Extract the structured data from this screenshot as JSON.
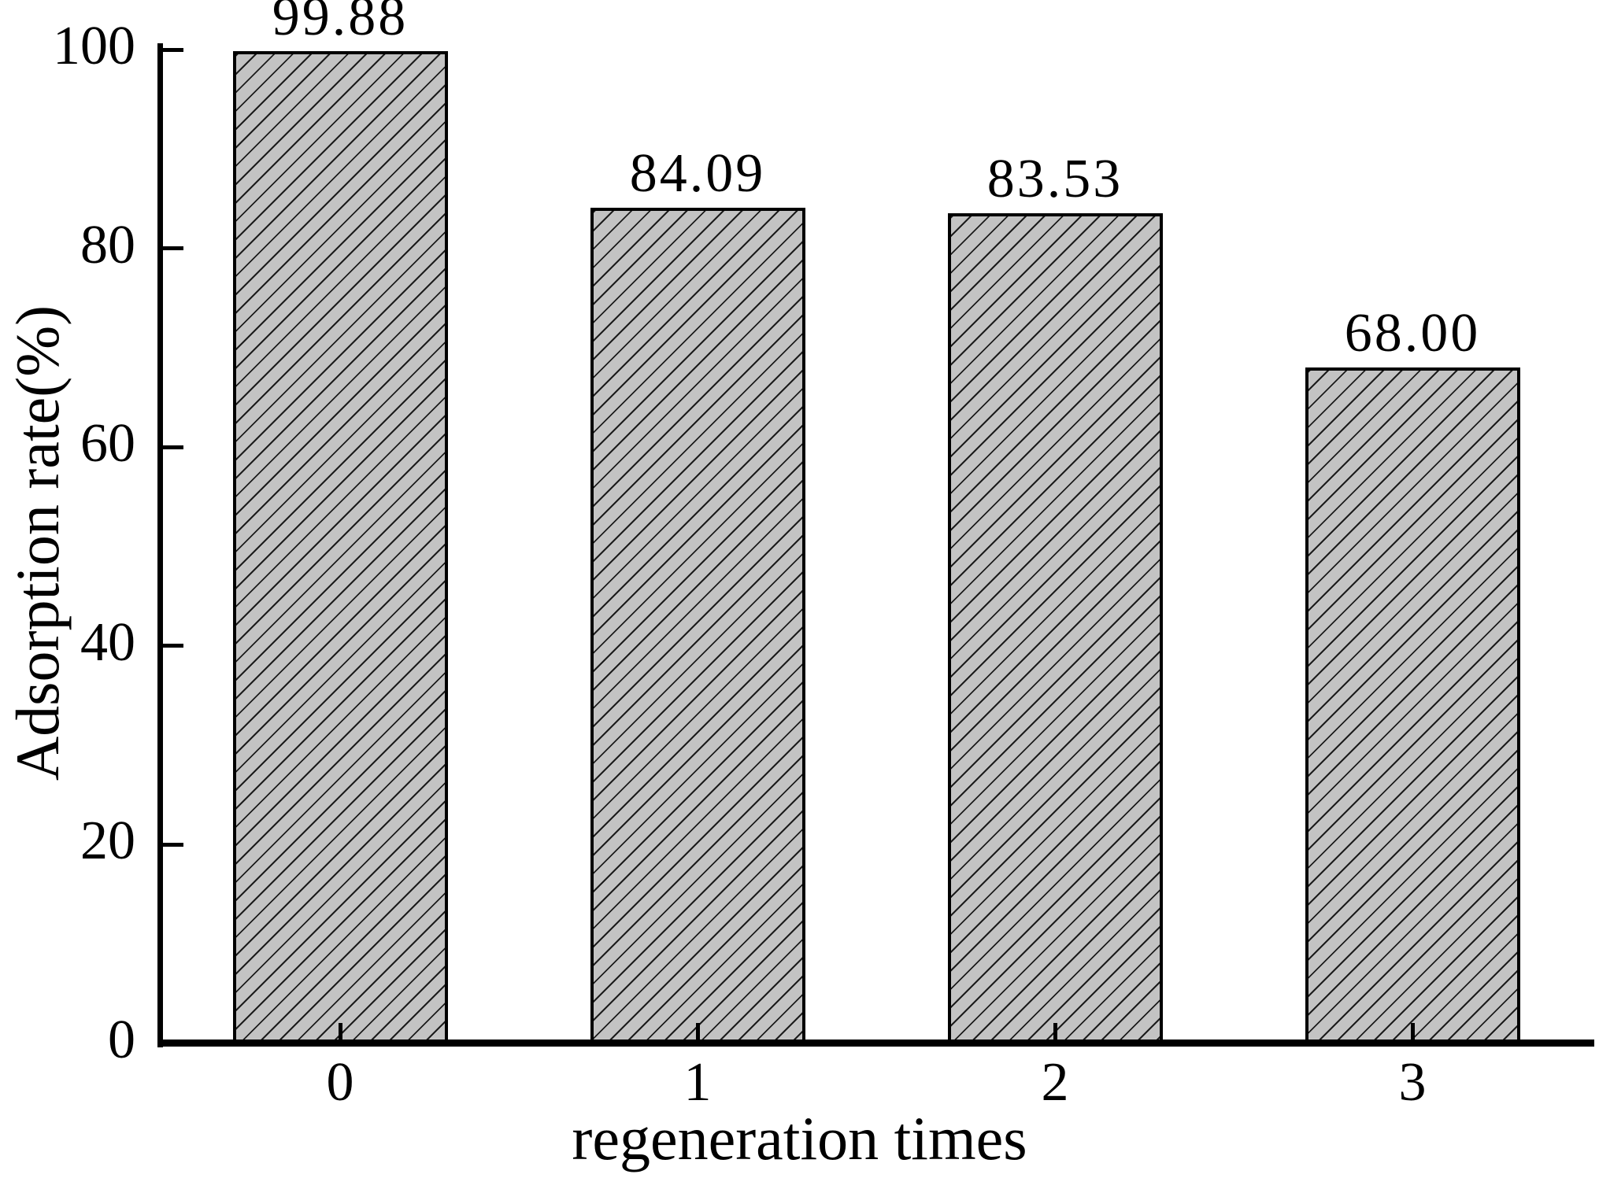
{
  "figure": {
    "background": "#ffffff",
    "text_color": "#000000"
  },
  "chart_data": {
    "type": "bar",
    "title": "",
    "categories": [
      "0",
      "1",
      "2",
      "3"
    ],
    "values": [
      99.88,
      84.09,
      83.53,
      68.0
    ],
    "bar_value_labels": [
      "99.88",
      "84.09",
      "83.53",
      "68.00"
    ],
    "xlabel": "regeneration times",
    "ylabel": "Adsorption rate(%)",
    "ylim": [
      0,
      100
    ],
    "yticks": [
      0,
      20,
      40,
      60,
      80,
      100
    ],
    "grid": false,
    "legend": "none",
    "bar_style": {
      "fill": "#c3c3c3",
      "hatch": "forward-diagonal",
      "hatch_color": "#1c1c1c",
      "edge_color": "#000000"
    },
    "axis_color": "#000000"
  }
}
